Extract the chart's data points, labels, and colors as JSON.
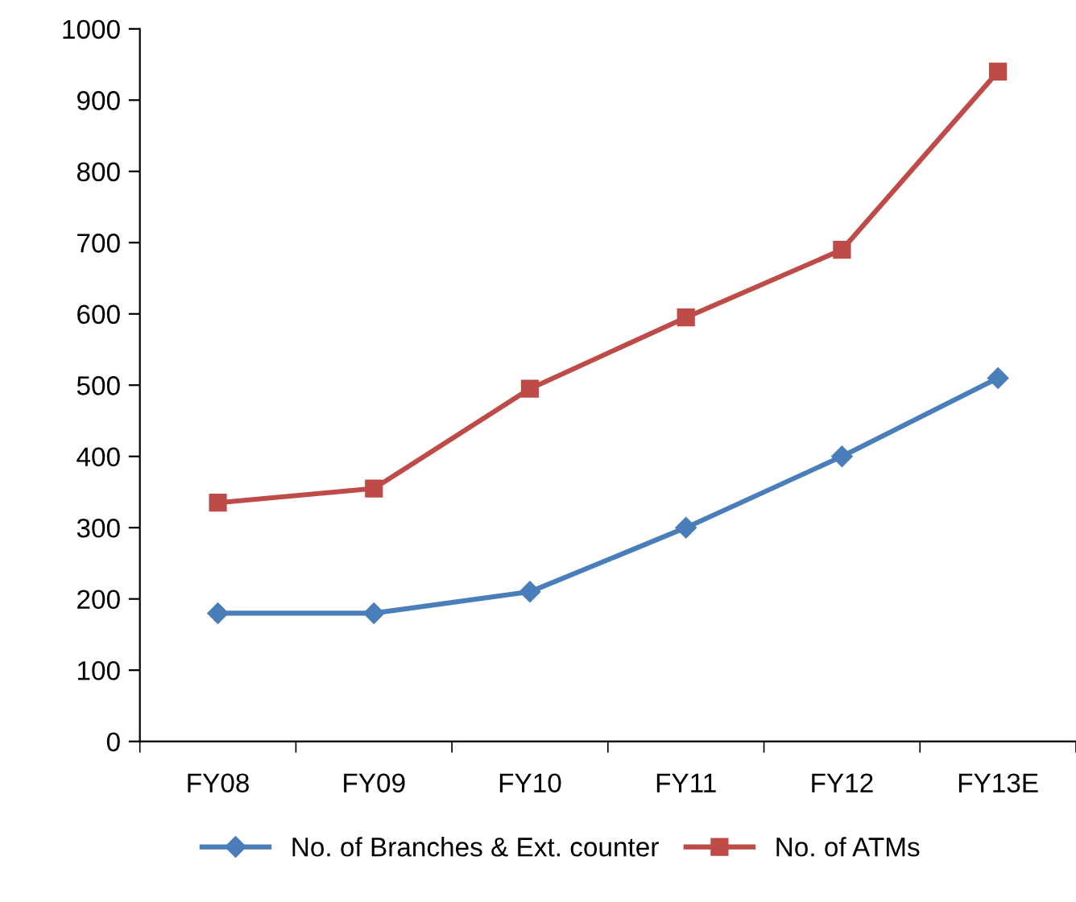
{
  "chart_data": {
    "type": "line",
    "categories": [
      "FY08",
      "FY09",
      "FY10",
      "FY11",
      "FY12",
      "FY13E"
    ],
    "series": [
      {
        "name": "No. of Branches & Ext. counter",
        "color": "#4a7ebb",
        "marker": "diamond",
        "values": [
          180,
          180,
          210,
          300,
          400,
          510
        ]
      },
      {
        "name": "No. of ATMs",
        "color": "#be4b48",
        "marker": "square",
        "values": [
          335,
          355,
          495,
          595,
          690,
          940
        ]
      }
    ],
    "ylim": [
      0,
      1000
    ],
    "yticks": [
      0,
      100,
      200,
      300,
      400,
      500,
      600,
      700,
      800,
      900,
      1000
    ],
    "grid": false,
    "legend": "bottom"
  }
}
